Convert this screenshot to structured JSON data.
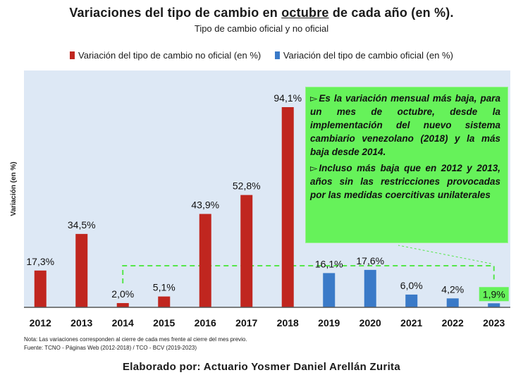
{
  "header": {
    "title_pre": "Variaciones del tipo de cambio en ",
    "title_underlined": "octubre",
    "title_post": " de cada año (en %).",
    "subtitle": "Tipo de cambio oficial y no oficial"
  },
  "legend": {
    "unofficial": "Variación del tipo de cambio no oficial (en %)",
    "official": "Variación del tipo de cambio oficial (en %)"
  },
  "colors": {
    "unofficial": "#c0261f",
    "official": "#3a7ac8",
    "plot_background": "#dde8f5",
    "callout_background": "#66f25a",
    "highlight_box": "#66f25a",
    "dashed_line": "#55e64a"
  },
  "chart_data": {
    "type": "bar",
    "title": "Variaciones del tipo de cambio en octubre de cada año (en %).",
    "subtitle": "Tipo de cambio oficial y no oficial",
    "xlabel": "",
    "ylabel": "Variación (en %)",
    "ylim": [
      0,
      100
    ],
    "grid": false,
    "legend_position": "top",
    "categories": [
      "2012",
      "2013",
      "2014",
      "2015",
      "2016",
      "2017",
      "2018",
      "2019",
      "2020",
      "2021",
      "2022",
      "2023"
    ],
    "series": [
      {
        "name": "Variación del tipo de cambio no oficial (en %)",
        "color": "#c0261f",
        "values": [
          17.3,
          34.5,
          2.0,
          5.1,
          43.9,
          52.8,
          94.1,
          null,
          null,
          null,
          null,
          null
        ]
      },
      {
        "name": "Variación del tipo de cambio oficial (en %)",
        "color": "#3a7ac8",
        "values": [
          null,
          null,
          null,
          null,
          null,
          null,
          null,
          16.1,
          17.6,
          6.0,
          4.2,
          1.9
        ]
      }
    ],
    "data_labels": [
      "17,3%",
      "34,5%",
      "2,0%",
      "5,1%",
      "43,9%",
      "52,8%",
      "94,1%",
      "16,1%",
      "17,6%",
      "6,0%",
      "4,2%",
      "1,9%"
    ],
    "highlighted_category": "2023"
  },
  "callout": {
    "marker": "▻",
    "point1": "Es la variación mensual más baja, para un mes de octubre, desde la implementación del nuevo sistema cambiario venezolano (2018) y la más baja desde 2014.",
    "point2": "Incluso más baja que en 2012 y 2013, años sin las restricciones provocadas por las medidas coercitivas unilaterales"
  },
  "footer": {
    "note": "Nota: Las variaciones corresponden al cierre de cada mes frente al cierre del mes previo.",
    "source": "Fuente: TCNO - Páginas Web (2012-2018) / TCO - BCV (2019-2023)",
    "credit": "Elaborado por: Actuario Yosmer Daniel Arellán Zurita"
  }
}
